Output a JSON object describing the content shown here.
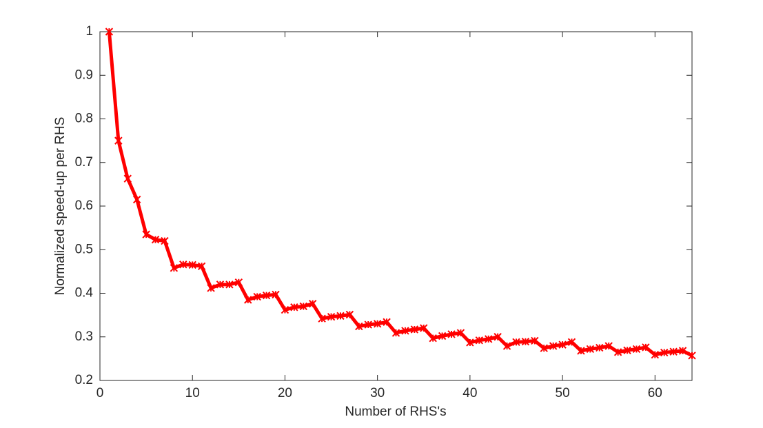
{
  "chart_data": {
    "type": "line",
    "xlabel": "Number of RHS's",
    "ylabel": "Normalized speed-up per RHS",
    "x": [
      1,
      2,
      3,
      4,
      5,
      6,
      7,
      8,
      9,
      10,
      11,
      12,
      13,
      14,
      15,
      16,
      17,
      18,
      19,
      20,
      21,
      22,
      23,
      24,
      25,
      26,
      27,
      28,
      29,
      30,
      31,
      32,
      33,
      34,
      35,
      36,
      37,
      38,
      39,
      40,
      41,
      42,
      43,
      44,
      45,
      46,
      47,
      48,
      49,
      50,
      51,
      52,
      53,
      54,
      55,
      56,
      57,
      58,
      59,
      60,
      61,
      62,
      63,
      64
    ],
    "series": [
      {
        "color": "#ff0000",
        "values": [
          1.0,
          0.75,
          0.663,
          0.615,
          0.535,
          0.523,
          0.52,
          0.458,
          0.466,
          0.465,
          0.462,
          0.412,
          0.42,
          0.42,
          0.425,
          0.385,
          0.392,
          0.395,
          0.397,
          0.362,
          0.368,
          0.37,
          0.376,
          0.342,
          0.346,
          0.348,
          0.351,
          0.324,
          0.328,
          0.33,
          0.334,
          0.309,
          0.314,
          0.317,
          0.32,
          0.297,
          0.302,
          0.306,
          0.309,
          0.287,
          0.292,
          0.295,
          0.3,
          0.279,
          0.288,
          0.289,
          0.291,
          0.274,
          0.279,
          0.282,
          0.288,
          0.268,
          0.272,
          0.275,
          0.279,
          0.265,
          0.269,
          0.272,
          0.276,
          0.259,
          0.264,
          0.266,
          0.268,
          0.257
        ]
      }
    ],
    "xlim": [
      0,
      64
    ],
    "xticks": [
      0,
      10,
      20,
      30,
      40,
      50,
      60
    ],
    "ylim": [
      0.2,
      1
    ],
    "yticks": [
      0.2,
      0.3,
      0.4,
      0.5,
      0.6,
      0.7,
      0.8,
      0.9,
      1
    ]
  }
}
